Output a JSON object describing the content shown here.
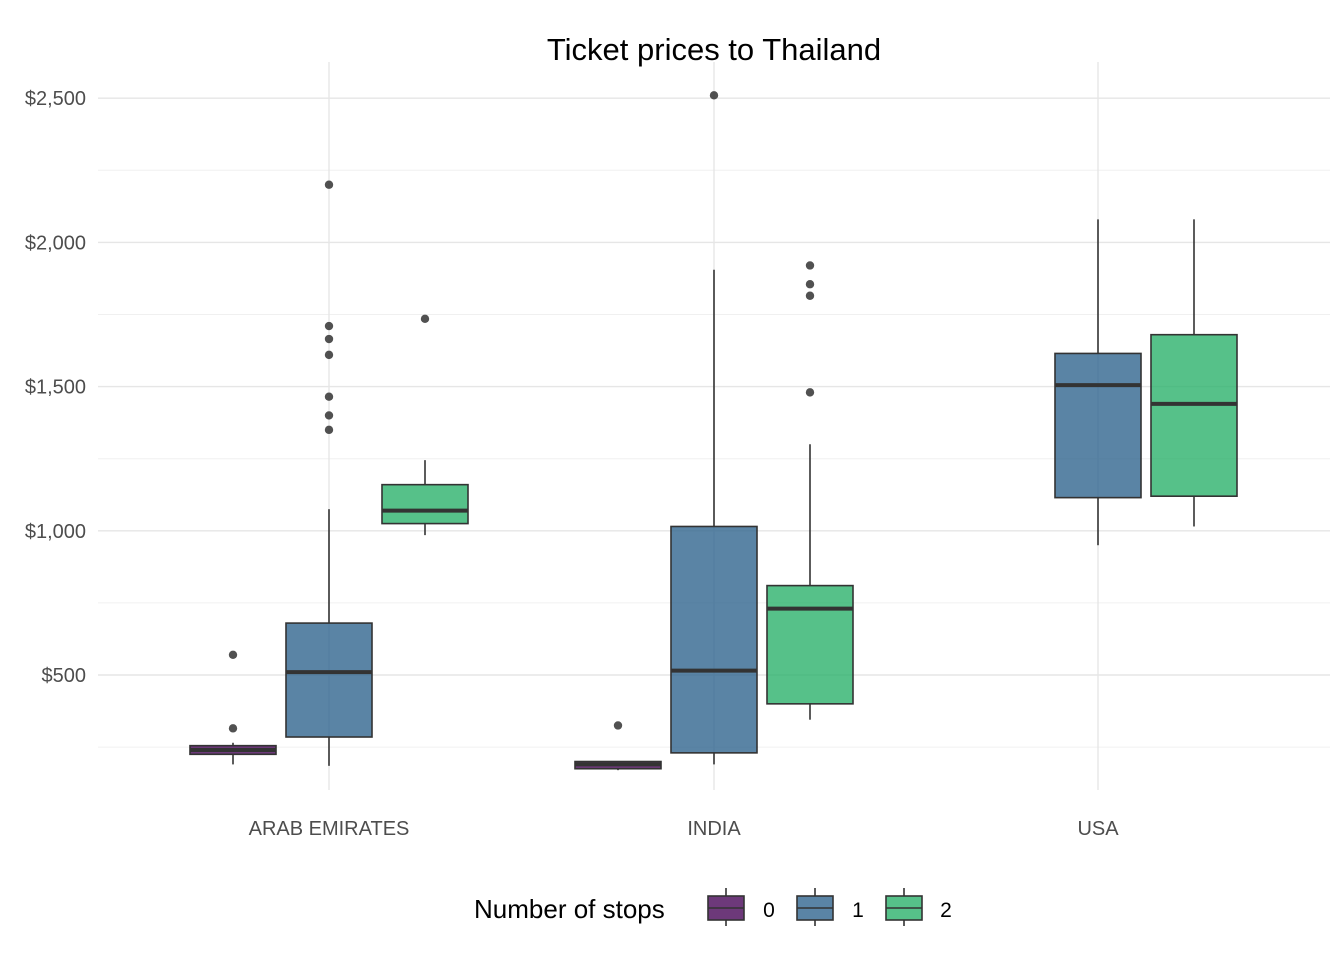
{
  "chart_data": {
    "type": "box",
    "title": "Ticket prices to Thailand",
    "xlabel": "",
    "ylabel": "",
    "categories": [
      "ARAB EMIRATES",
      "INDIA",
      "USA"
    ],
    "y_ticks": [
      {
        "value": 500,
        "label": "$500"
      },
      {
        "value": 1000,
        "label": "$1,000"
      },
      {
        "value": 1500,
        "label": "$1,500"
      },
      {
        "value": 2000,
        "label": "$2,000"
      },
      {
        "value": 2500,
        "label": "$2,500"
      }
    ],
    "ylim": [
      80,
      2610
    ],
    "grid": true,
    "legend": {
      "title": "Number of stops",
      "position": "bottom",
      "items": [
        {
          "label": "0",
          "color": "#440154"
        },
        {
          "label": "1",
          "color": "#2c618c"
        },
        {
          "label": "2",
          "color": "#27b068"
        }
      ]
    },
    "series": [
      {
        "name": "0",
        "color": "#440154",
        "boxes": [
          {
            "category": "ARAB EMIRATES",
            "low": 190,
            "q1": 225,
            "median": 240,
            "q3": 255,
            "high": 265,
            "outliers": [
              570,
              315
            ]
          },
          {
            "category": "INDIA",
            "low": 170,
            "q1": 175,
            "median": 190,
            "q3": 200,
            "high": 200,
            "outliers": [
              325
            ]
          },
          null
        ]
      },
      {
        "name": "1",
        "color": "#2c618c",
        "boxes": [
          {
            "category": "ARAB EMIRATES",
            "low": 185,
            "q1": 285,
            "median": 510,
            "q3": 680,
            "high": 1075,
            "outliers": [
              2200,
              1710,
              1665,
              1610,
              1465,
              1400,
              1350
            ]
          },
          {
            "category": "INDIA",
            "low": 190,
            "q1": 230,
            "median": 515,
            "q3": 1015,
            "high": 1905,
            "outliers": [
              2510
            ]
          },
          {
            "category": "USA",
            "low": 950,
            "q1": 1115,
            "median": 1505,
            "q3": 1615,
            "high": 2080,
            "outliers": []
          }
        ]
      },
      {
        "name": "2",
        "color": "#27b068",
        "boxes": [
          {
            "category": "ARAB EMIRATES",
            "low": 985,
            "q1": 1025,
            "median": 1070,
            "q3": 1160,
            "high": 1245,
            "outliers": [
              1735
            ]
          },
          {
            "category": "INDIA",
            "low": 345,
            "q1": 400,
            "median": 730,
            "q3": 810,
            "high": 1300,
            "outliers": [
              1920,
              1855,
              1815,
              1480
            ]
          },
          {
            "category": "USA",
            "low": 1015,
            "q1": 1120,
            "median": 1440,
            "q3": 1680,
            "high": 2080,
            "outliers": []
          }
        ]
      }
    ]
  }
}
